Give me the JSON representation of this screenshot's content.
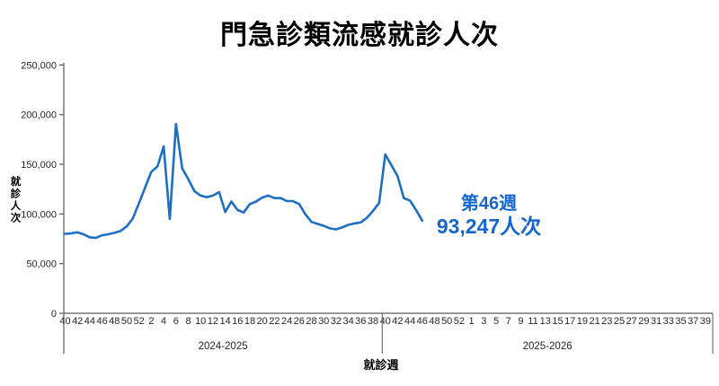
{
  "title": "門急診類流感就診人次",
  "chart_data": {
    "type": "line",
    "title": "門急診類流感就診人次",
    "xlabel": "就診週",
    "ylabel": "就診人次",
    "ylim": [
      0,
      250000
    ],
    "grid": false,
    "legend": "none",
    "line_color": "#1C6FC4",
    "axis_color": "#595959",
    "tick_label_color": "#262626",
    "y_tick_values": [
      0,
      50000,
      100000,
      150000,
      200000,
      250000
    ],
    "y_tick_labels": [
      "0",
      "50,000",
      "100,000",
      "150,000",
      "200,000",
      "250,000"
    ],
    "x_groups": [
      {
        "label": "2024-2025",
        "tick_labels": [
          "40",
          "42",
          "44",
          "46",
          "48",
          "50",
          "52",
          "2",
          "4",
          "6",
          "8",
          "10",
          "12",
          "14",
          "16",
          "18",
          "20",
          "22",
          "24",
          "26",
          "28",
          "30",
          "32",
          "34",
          "36",
          "38"
        ]
      },
      {
        "label": "2025-2026",
        "tick_labels": [
          "40",
          "42",
          "44",
          "46",
          "48",
          "50",
          "52",
          "1",
          "3",
          "5",
          "7",
          "9",
          "11",
          "13",
          "15",
          "17",
          "19",
          "21",
          "23",
          "25",
          "27",
          "29",
          "31",
          "33",
          "35",
          "37",
          "39"
        ]
      }
    ],
    "series": [
      {
        "name": "類流感就診人次",
        "weeks": [
          40,
          41,
          42,
          43,
          44,
          45,
          46,
          47,
          48,
          49,
          50,
          51,
          52,
          1,
          2,
          3,
          4,
          5,
          6,
          7,
          8,
          9,
          10,
          11,
          12,
          13,
          14,
          15,
          16,
          17,
          18,
          19,
          20,
          21,
          22,
          23,
          24,
          25,
          26,
          27,
          28,
          29,
          30,
          31,
          32,
          33,
          34,
          35,
          36,
          37,
          38,
          39,
          40,
          41,
          42,
          43,
          44,
          45,
          46
        ],
        "values": [
          80000,
          80500,
          81500,
          79500,
          76500,
          76000,
          78500,
          79500,
          81000,
          83000,
          87500,
          95500,
          111000,
          127000,
          142500,
          148000,
          168000,
          95000,
          190500,
          146000,
          135000,
          123000,
          118500,
          117000,
          118500,
          122000,
          102000,
          112500,
          104000,
          101500,
          110000,
          112500,
          116500,
          118500,
          116000,
          116000,
          113000,
          113000,
          110000,
          100000,
          92000,
          90000,
          88000,
          85500,
          84500,
          86500,
          89000,
          90500,
          91500,
          96000,
          103000,
          111000,
          160000,
          149000,
          138000,
          116000,
          113500,
          104000,
          93247
        ]
      }
    ],
    "annotation": {
      "line1": "第46週",
      "line2": "93,247人次",
      "color": "#1565CB"
    }
  }
}
